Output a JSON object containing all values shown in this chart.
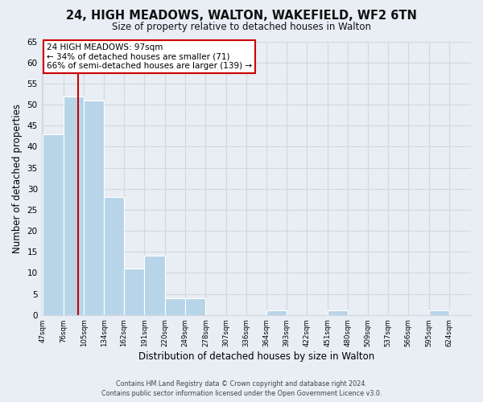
{
  "title": "24, HIGH MEADOWS, WALTON, WAKEFIELD, WF2 6TN",
  "subtitle": "Size of property relative to detached houses in Walton",
  "xlabel": "Distribution of detached houses by size in Walton",
  "ylabel": "Number of detached properties",
  "bar_edges": [
    47,
    76,
    105,
    134,
    162,
    191,
    220,
    249,
    278,
    307,
    336,
    364,
    393,
    422,
    451,
    480,
    509,
    537,
    566,
    595,
    624
  ],
  "bar_heights": [
    43,
    52,
    51,
    28,
    11,
    14,
    4,
    4,
    0,
    0,
    0,
    1,
    0,
    0,
    1,
    0,
    0,
    0,
    0,
    1
  ],
  "bar_color": "#b8d4e8",
  "bar_edge_color": "#ffffff",
  "property_line_x": 97,
  "property_line_color": "#cc0000",
  "annotation_text_line1": "24 HIGH MEADOWS: 97sqm",
  "annotation_text_line2": "← 34% of detached houses are smaller (71)",
  "annotation_text_line3": "66% of semi-detached houses are larger (139) →",
  "ylim": [
    0,
    65
  ],
  "yticks": [
    0,
    5,
    10,
    15,
    20,
    25,
    30,
    35,
    40,
    45,
    50,
    55,
    60,
    65
  ],
  "grid_color": "#d0d8e0",
  "bg_color": "#e8eef4",
  "footer_line1": "Contains HM Land Registry data © Crown copyright and database right 2024.",
  "footer_line2": "Contains public sector information licensed under the Open Government Licence v3.0."
}
